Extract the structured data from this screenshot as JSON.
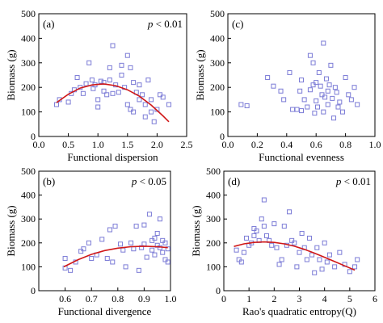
{
  "chart_data": [
    {
      "type": "scatter",
      "tag": "(a)",
      "pvalue_label": "p",
      "pvalue_rest": " < 0.01",
      "xlabel": "Functional dispersion",
      "ylabel": "Biomass (g)",
      "xlim": [
        0.0,
        2.5
      ],
      "ylim": [
        0,
        500
      ],
      "xticks": [
        "0.0",
        "0.5",
        "1.0",
        "1.5",
        "2.0",
        "2.5"
      ],
      "yticks": [
        "0",
        "100",
        "200",
        "300",
        "400",
        "500"
      ],
      "fit": true,
      "fit_color": "#d01818",
      "marker_color": "#7b7bd6",
      "points": [
        [
          0.3,
          130
        ],
        [
          0.35,
          150
        ],
        [
          0.5,
          140
        ],
        [
          0.55,
          175
        ],
        [
          0.6,
          190
        ],
        [
          0.65,
          240
        ],
        [
          0.7,
          200
        ],
        [
          0.75,
          175
        ],
        [
          0.8,
          215
        ],
        [
          0.85,
          300
        ],
        [
          0.9,
          230
        ],
        [
          0.92,
          195
        ],
        [
          0.95,
          210
        ],
        [
          1.0,
          150
        ],
        [
          1.0,
          120
        ],
        [
          1.05,
          225
        ],
        [
          1.1,
          220
        ],
        [
          1.1,
          185
        ],
        [
          1.15,
          170
        ],
        [
          1.2,
          280
        ],
        [
          1.2,
          230
        ],
        [
          1.25,
          370
        ],
        [
          1.25,
          175
        ],
        [
          1.3,
          210
        ],
        [
          1.35,
          180
        ],
        [
          1.4,
          290
        ],
        [
          1.4,
          250
        ],
        [
          1.45,
          200
        ],
        [
          1.5,
          330
        ],
        [
          1.5,
          130
        ],
        [
          1.55,
          280
        ],
        [
          1.55,
          110
        ],
        [
          1.6,
          220
        ],
        [
          1.6,
          100
        ],
        [
          1.65,
          180
        ],
        [
          1.7,
          210
        ],
        [
          1.7,
          150
        ],
        [
          1.75,
          170
        ],
        [
          1.8,
          80
        ],
        [
          1.8,
          130
        ],
        [
          1.85,
          230
        ],
        [
          1.9,
          150
        ],
        [
          1.9,
          100
        ],
        [
          1.95,
          60
        ],
        [
          2.0,
          110
        ],
        [
          2.05,
          170
        ],
        [
          2.1,
          160
        ],
        [
          2.2,
          130
        ]
      ],
      "curve": [
        [
          0.3,
          138
        ],
        [
          0.5,
          172
        ],
        [
          0.7,
          197
        ],
        [
          0.9,
          210
        ],
        [
          1.1,
          214
        ],
        [
          1.3,
          207
        ],
        [
          1.5,
          190
        ],
        [
          1.7,
          164
        ],
        [
          1.9,
          128
        ],
        [
          2.1,
          84
        ],
        [
          2.2,
          60
        ]
      ]
    },
    {
      "type": "scatter",
      "tag": "(c)",
      "pvalue_label": "",
      "pvalue_rest": "",
      "xlabel": "Functional evenness",
      "ylabel": "Biomass (g)",
      "xlim": [
        0.0,
        1.0
      ],
      "ylim": [
        0,
        500
      ],
      "xticks": [
        "0.0",
        "0.2",
        "0.4",
        "0.6",
        "0.8",
        "1.0"
      ],
      "yticks": [
        "0",
        "100",
        "200",
        "300",
        "400",
        "500"
      ],
      "fit": false,
      "fit_color": "#d01818",
      "marker_color": "#7b7bd6",
      "points": [
        [
          0.09,
          130
        ],
        [
          0.13,
          125
        ],
        [
          0.27,
          240
        ],
        [
          0.31,
          205
        ],
        [
          0.36,
          185
        ],
        [
          0.38,
          150
        ],
        [
          0.42,
          260
        ],
        [
          0.44,
          110
        ],
        [
          0.47,
          110
        ],
        [
          0.49,
          185
        ],
        [
          0.5,
          105
        ],
        [
          0.5,
          230
        ],
        [
          0.52,
          150
        ],
        [
          0.54,
          120
        ],
        [
          0.56,
          330
        ],
        [
          0.56,
          190
        ],
        [
          0.58,
          210
        ],
        [
          0.58,
          300
        ],
        [
          0.59,
          95
        ],
        [
          0.6,
          220
        ],
        [
          0.6,
          145
        ],
        [
          0.61,
          120
        ],
        [
          0.62,
          260
        ],
        [
          0.63,
          205
        ],
        [
          0.64,
          170
        ],
        [
          0.65,
          380
        ],
        [
          0.65,
          100
        ],
        [
          0.66,
          160
        ],
        [
          0.67,
          235
        ],
        [
          0.68,
          185
        ],
        [
          0.68,
          130
        ],
        [
          0.69,
          210
        ],
        [
          0.7,
          290
        ],
        [
          0.71,
          155
        ],
        [
          0.72,
          75
        ],
        [
          0.73,
          200
        ],
        [
          0.74,
          180
        ],
        [
          0.75,
          120
        ],
        [
          0.76,
          140
        ],
        [
          0.78,
          100
        ],
        [
          0.8,
          240
        ],
        [
          0.82,
          170
        ],
        [
          0.84,
          150
        ],
        [
          0.86,
          200
        ],
        [
          0.88,
          130
        ]
      ],
      "curve": []
    },
    {
      "type": "scatter",
      "tag": "(b)",
      "pvalue_label": "p",
      "pvalue_rest": " < 0.05",
      "xlabel": "Functional divergence",
      "ylabel": "Biomass (g)",
      "xlim": [
        0.5,
        1.0
      ],
      "ylim": [
        0,
        500
      ],
      "xticks": [
        "0.6",
        "0.7",
        "0.8",
        "0.9",
        "1.0"
      ],
      "xtick_values": [
        0.6,
        0.7,
        0.8,
        0.9,
        1.0
      ],
      "yticks": [
        "0",
        "100",
        "200",
        "300",
        "400",
        "500"
      ],
      "fit": true,
      "fit_color": "#d01818",
      "marker_color": "#7b7bd6",
      "points": [
        [
          0.6,
          95
        ],
        [
          0.6,
          135
        ],
        [
          0.62,
          85
        ],
        [
          0.64,
          120
        ],
        [
          0.66,
          165
        ],
        [
          0.67,
          175
        ],
        [
          0.69,
          200
        ],
        [
          0.7,
          135
        ],
        [
          0.72,
          150
        ],
        [
          0.74,
          215
        ],
        [
          0.76,
          135
        ],
        [
          0.77,
          255
        ],
        [
          0.78,
          120
        ],
        [
          0.79,
          270
        ],
        [
          0.81,
          195
        ],
        [
          0.82,
          170
        ],
        [
          0.83,
          100
        ],
        [
          0.85,
          200
        ],
        [
          0.86,
          175
        ],
        [
          0.87,
          270
        ],
        [
          0.88,
          85
        ],
        [
          0.89,
          180
        ],
        [
          0.9,
          195
        ],
        [
          0.9,
          275
        ],
        [
          0.91,
          140
        ],
        [
          0.92,
          320
        ],
        [
          0.93,
          210
        ],
        [
          0.93,
          170
        ],
        [
          0.94,
          220
        ],
        [
          0.94,
          150
        ],
        [
          0.95,
          240
        ],
        [
          0.95,
          190
        ],
        [
          0.96,
          300
        ],
        [
          0.96,
          180
        ],
        [
          0.97,
          210
        ],
        [
          0.97,
          160
        ],
        [
          0.98,
          130
        ],
        [
          0.98,
          200
        ],
        [
          0.99,
          175
        ],
        [
          0.99,
          120
        ]
      ],
      "curve": [
        [
          0.595,
          100
        ],
        [
          0.65,
          130
        ],
        [
          0.7,
          152
        ],
        [
          0.75,
          168
        ],
        [
          0.8,
          178
        ],
        [
          0.85,
          184
        ],
        [
          0.9,
          186
        ],
        [
          0.95,
          184
        ],
        [
          0.99,
          180
        ]
      ]
    },
    {
      "type": "scatter",
      "tag": "(d)",
      "pvalue_label": "p",
      "pvalue_rest": " < 0.01",
      "xlabel": "Rao's quadratic entropy(Q)",
      "ylabel": "Biomass (g)",
      "xlim": [
        0,
        6
      ],
      "ylim": [
        0,
        500
      ],
      "xticks": [
        "0",
        "1",
        "2",
        "3",
        "4",
        "5",
        "6"
      ],
      "yticks": [
        "0",
        "100",
        "200",
        "300",
        "400",
        "500"
      ],
      "fit": true,
      "fit_color": "#d01818",
      "marker_color": "#7b7bd6",
      "points": [
        [
          0.5,
          170
        ],
        [
          0.6,
          130
        ],
        [
          0.7,
          120
        ],
        [
          0.8,
          160
        ],
        [
          0.9,
          220
        ],
        [
          1.0,
          190
        ],
        [
          1.1,
          200
        ],
        [
          1.2,
          260
        ],
        [
          1.2,
          230
        ],
        [
          1.3,
          250
        ],
        [
          1.4,
          210
        ],
        [
          1.5,
          300
        ],
        [
          1.6,
          380
        ],
        [
          1.6,
          270
        ],
        [
          1.7,
          230
        ],
        [
          1.8,
          210
        ],
        [
          1.9,
          190
        ],
        [
          2.0,
          280
        ],
        [
          2.1,
          180
        ],
        [
          2.2,
          110
        ],
        [
          2.3,
          130
        ],
        [
          2.4,
          270
        ],
        [
          2.5,
          190
        ],
        [
          2.6,
          330
        ],
        [
          2.7,
          210
        ],
        [
          2.8,
          200
        ],
        [
          2.9,
          100
        ],
        [
          3.0,
          160
        ],
        [
          3.1,
          240
        ],
        [
          3.2,
          180
        ],
        [
          3.3,
          130
        ],
        [
          3.4,
          220
        ],
        [
          3.5,
          150
        ],
        [
          3.6,
          75
        ],
        [
          3.7,
          180
        ],
        [
          3.8,
          130
        ],
        [
          3.9,
          90
        ],
        [
          4.0,
          200
        ],
        [
          4.1,
          120
        ],
        [
          4.2,
          150
        ],
        [
          4.4,
          100
        ],
        [
          4.6,
          160
        ],
        [
          4.8,
          110
        ],
        [
          5.0,
          80
        ],
        [
          5.2,
          100
        ],
        [
          5.3,
          130
        ]
      ],
      "curve": [
        [
          0.4,
          185
        ],
        [
          0.8,
          196
        ],
        [
          1.2,
          202
        ],
        [
          1.6,
          204
        ],
        [
          2.0,
          202
        ],
        [
          2.4,
          196
        ],
        [
          2.8,
          186
        ],
        [
          3.2,
          173
        ],
        [
          3.6,
          157
        ],
        [
          4.0,
          140
        ],
        [
          4.4,
          122
        ],
        [
          4.8,
          104
        ],
        [
          5.2,
          86
        ]
      ]
    }
  ]
}
